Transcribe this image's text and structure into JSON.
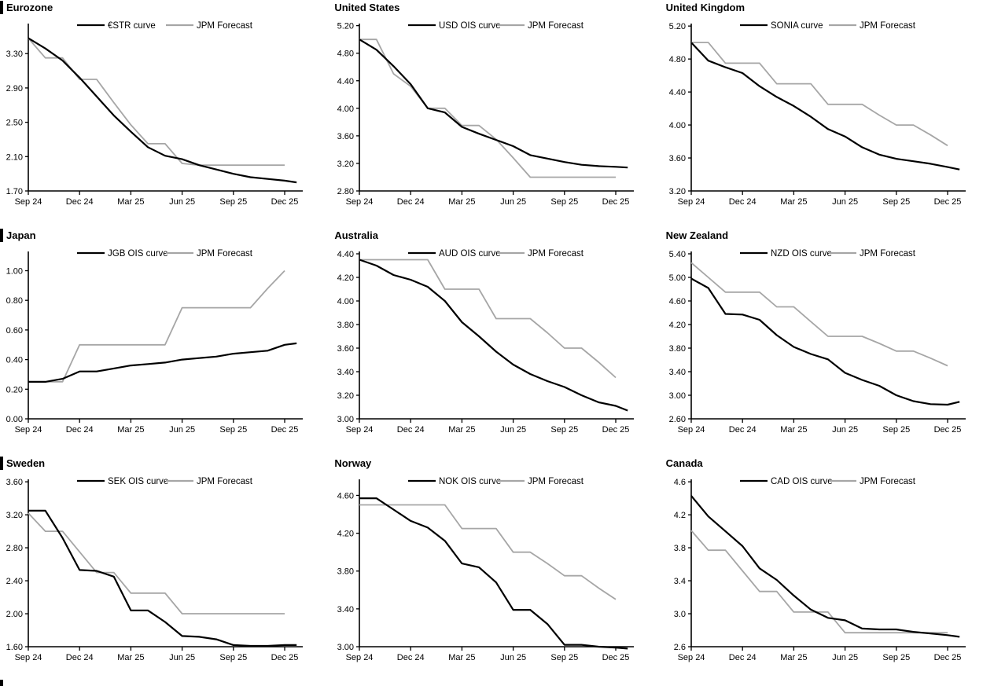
{
  "colors": {
    "ois_line": "#000000",
    "forecast_line": "#a6a6a6"
  },
  "x_axis": {
    "unit": "months_from_sep24",
    "tick_labels": [
      "Sep 24",
      "Dec 24",
      "Mar 25",
      "Jun 25",
      "Sep 25",
      "Dec 25"
    ]
  },
  "chart_data": [
    {
      "type": "line",
      "title": "Eurozone",
      "title_bar": true,
      "ylim": [
        1.7,
        3.65
      ],
      "yticks": [
        1.7,
        2.1,
        2.5,
        2.9,
        3.3
      ],
      "ytick_labels": [
        "1.70",
        "2.10",
        "2.50",
        "2.90",
        "3.30"
      ],
      "series": [
        {
          "name": "€STR curve",
          "role": "ois",
          "values": [
            3.48,
            3.36,
            3.22,
            3.02,
            2.8,
            2.58,
            2.39,
            2.21,
            2.11,
            2.07,
            2.0,
            1.95,
            1.9,
            1.86,
            1.84,
            1.82,
            1.8
          ]
        },
        {
          "name": "JPM Forecast",
          "role": "forecast",
          "values": [
            3.48,
            3.25,
            3.25,
            3.0,
            3.0,
            2.73,
            2.47,
            2.25,
            2.25,
            2.02,
            2.0,
            2.0,
            2.0,
            2.0,
            2.0,
            2.0
          ]
        }
      ]
    },
    {
      "type": "line",
      "title": "United States",
      "title_bar": false,
      "ylim": [
        2.8,
        5.23
      ],
      "yticks": [
        2.8,
        3.2,
        3.6,
        4.0,
        4.4,
        4.8,
        5.2
      ],
      "ytick_labels": [
        "2.80",
        "3.20",
        "3.60",
        "4.00",
        "4.40",
        "4.80",
        "5.20"
      ],
      "series": [
        {
          "name": "USD OIS curve",
          "role": "ois",
          "values": [
            5.0,
            4.85,
            4.61,
            4.35,
            4.0,
            3.94,
            3.73,
            3.63,
            3.54,
            3.45,
            3.32,
            3.27,
            3.22,
            3.18,
            3.16,
            3.15,
            3.14
          ]
        },
        {
          "name": "JPM Forecast",
          "role": "forecast",
          "values": [
            5.0,
            5.0,
            4.5,
            4.32,
            4.0,
            4.0,
            3.75,
            3.75,
            3.55,
            3.28,
            3.0,
            3.0,
            3.0,
            3.0,
            3.0,
            3.0
          ]
        }
      ]
    },
    {
      "type": "line",
      "title": "United Kingdom",
      "title_bar": false,
      "ylim": [
        3.2,
        5.23
      ],
      "yticks": [
        3.2,
        3.6,
        4.0,
        4.4,
        4.8,
        5.2
      ],
      "ytick_labels": [
        "3.20",
        "3.60",
        "4.00",
        "4.40",
        "4.80",
        "5.20"
      ],
      "series": [
        {
          "name": "SONIA curve",
          "role": "ois",
          "values": [
            5.0,
            4.78,
            4.7,
            4.63,
            4.47,
            4.34,
            4.23,
            4.1,
            3.95,
            3.86,
            3.73,
            3.64,
            3.59,
            3.56,
            3.53,
            3.49,
            3.46
          ]
        },
        {
          "name": "JPM Forecast",
          "role": "forecast",
          "values": [
            5.0,
            5.0,
            4.75,
            4.75,
            4.75,
            4.5,
            4.5,
            4.5,
            4.25,
            4.25,
            4.25,
            4.12,
            4.0,
            4.0,
            3.88,
            3.75
          ]
        }
      ]
    },
    {
      "type": "line",
      "title": "Japan",
      "title_bar": true,
      "ylim": [
        0.0,
        1.13
      ],
      "yticks": [
        0.0,
        0.2,
        0.4,
        0.6,
        0.8,
        1.0
      ],
      "ytick_labels": [
        "0.00",
        "0.20",
        "0.40",
        "0.60",
        "0.80",
        "1.00"
      ],
      "series": [
        {
          "name": "JGB OIS curve",
          "role": "ois",
          "values": [
            0.25,
            0.25,
            0.27,
            0.32,
            0.32,
            0.34,
            0.36,
            0.37,
            0.38,
            0.4,
            0.41,
            0.42,
            0.44,
            0.45,
            0.46,
            0.5,
            0.51
          ]
        },
        {
          "name": "JPM Forecast",
          "role": "forecast",
          "values": [
            0.25,
            0.25,
            0.25,
            0.5,
            0.5,
            0.5,
            0.5,
            0.5,
            0.5,
            0.75,
            0.75,
            0.75,
            0.75,
            0.75,
            0.88,
            1.0
          ]
        }
      ]
    },
    {
      "type": "line",
      "title": "Australia",
      "title_bar": false,
      "ylim": [
        3.0,
        4.42
      ],
      "yticks": [
        3.0,
        3.2,
        3.4,
        3.6,
        3.8,
        4.0,
        4.2,
        4.4
      ],
      "ytick_labels": [
        "3.00",
        "3.20",
        "3.40",
        "3.60",
        "3.80",
        "4.00",
        "4.20",
        "4.40"
      ],
      "series": [
        {
          "name": "AUD OIS curve",
          "role": "ois",
          "values": [
            4.35,
            4.3,
            4.22,
            4.18,
            4.12,
            4.0,
            3.82,
            3.7,
            3.57,
            3.46,
            3.38,
            3.32,
            3.27,
            3.2,
            3.14,
            3.11,
            3.07
          ]
        },
        {
          "name": "JPM Forecast",
          "role": "forecast",
          "values": [
            4.35,
            4.35,
            4.35,
            4.35,
            4.35,
            4.1,
            4.1,
            4.1,
            3.85,
            3.85,
            3.85,
            3.73,
            3.6,
            3.6,
            3.48,
            3.35
          ]
        }
      ]
    },
    {
      "type": "line",
      "title": "New Zealand",
      "title_bar": false,
      "ylim": [
        2.6,
        5.44
      ],
      "yticks": [
        2.6,
        3.0,
        3.4,
        3.8,
        4.2,
        4.6,
        5.0,
        5.4
      ],
      "ytick_labels": [
        "2.60",
        "3.00",
        "3.40",
        "3.80",
        "4.20",
        "4.60",
        "5.00",
        "5.40"
      ],
      "series": [
        {
          "name": "NZD OIS curve",
          "role": "ois",
          "values": [
            4.98,
            4.82,
            4.38,
            4.37,
            4.28,
            4.02,
            3.82,
            3.7,
            3.61,
            3.38,
            3.26,
            3.16,
            3.0,
            2.9,
            2.85,
            2.84,
            2.89
          ]
        },
        {
          "name": "JPM Forecast",
          "role": "forecast",
          "values": [
            5.25,
            5.0,
            4.75,
            4.75,
            4.75,
            4.5,
            4.5,
            4.25,
            4.0,
            4.0,
            4.0,
            3.88,
            3.75,
            3.75,
            3.63,
            3.5
          ]
        }
      ]
    },
    {
      "type": "line",
      "title": "Sweden",
      "title_bar": true,
      "ylim": [
        1.6,
        3.63
      ],
      "yticks": [
        1.6,
        2.0,
        2.4,
        2.8,
        3.2,
        3.6
      ],
      "ytick_labels": [
        "1.60",
        "2.00",
        "2.40",
        "2.80",
        "3.20",
        "3.60"
      ],
      "series": [
        {
          "name": "SEK OIS curve",
          "role": "ois",
          "values": [
            3.25,
            3.25,
            2.92,
            2.53,
            2.52,
            2.45,
            2.04,
            2.04,
            1.9,
            1.73,
            1.72,
            1.69,
            1.62,
            1.61,
            1.61,
            1.62,
            1.62
          ]
        },
        {
          "name": "JPM Forecast",
          "role": "forecast",
          "values": [
            3.22,
            3.0,
            3.0,
            2.75,
            2.5,
            2.5,
            2.25,
            2.25,
            2.25,
            2.0,
            2.0,
            2.0,
            2.0,
            2.0,
            2.0,
            2.0
          ]
        }
      ]
    },
    {
      "type": "line",
      "title": "Norway",
      "title_bar": false,
      "ylim": [
        3.0,
        4.77
      ],
      "yticks": [
        3.0,
        3.4,
        3.8,
        4.2,
        4.6
      ],
      "ytick_labels": [
        "3.00",
        "3.40",
        "3.80",
        "4.20",
        "4.60"
      ],
      "series": [
        {
          "name": "NOK OIS curve",
          "role": "ois",
          "values": [
            4.57,
            4.57,
            4.45,
            4.33,
            4.26,
            4.12,
            3.88,
            3.84,
            3.68,
            3.39,
            3.39,
            3.24,
            3.02,
            3.02,
            3.0,
            2.99,
            2.98
          ]
        },
        {
          "name": "JPM Forecast",
          "role": "forecast",
          "values": [
            4.5,
            4.5,
            4.5,
            4.5,
            4.5,
            4.5,
            4.25,
            4.25,
            4.25,
            4.0,
            4.0,
            3.88,
            3.75,
            3.75,
            3.62,
            3.5
          ]
        }
      ]
    },
    {
      "type": "line",
      "title": "Canada",
      "title_bar": false,
      "ylim": [
        2.6,
        4.63
      ],
      "yticks": [
        2.6,
        3.0,
        3.4,
        3.8,
        4.2,
        4.6
      ],
      "ytick_labels": [
        "2.6",
        "3.0",
        "3.4",
        "3.8",
        "4.2",
        "4.6"
      ],
      "series": [
        {
          "name": "CAD OIS curve",
          "role": "ois",
          "values": [
            4.43,
            4.18,
            4.0,
            3.82,
            3.55,
            3.41,
            3.22,
            3.05,
            2.95,
            2.92,
            2.82,
            2.81,
            2.81,
            2.78,
            2.76,
            2.74,
            2.72
          ]
        },
        {
          "name": "JPM Forecast",
          "role": "forecast",
          "values": [
            4.01,
            3.77,
            3.77,
            3.52,
            3.27,
            3.27,
            3.02,
            3.02,
            3.02,
            2.77,
            2.77,
            2.77,
            2.77,
            2.77,
            2.77,
            2.77
          ]
        }
      ]
    }
  ]
}
